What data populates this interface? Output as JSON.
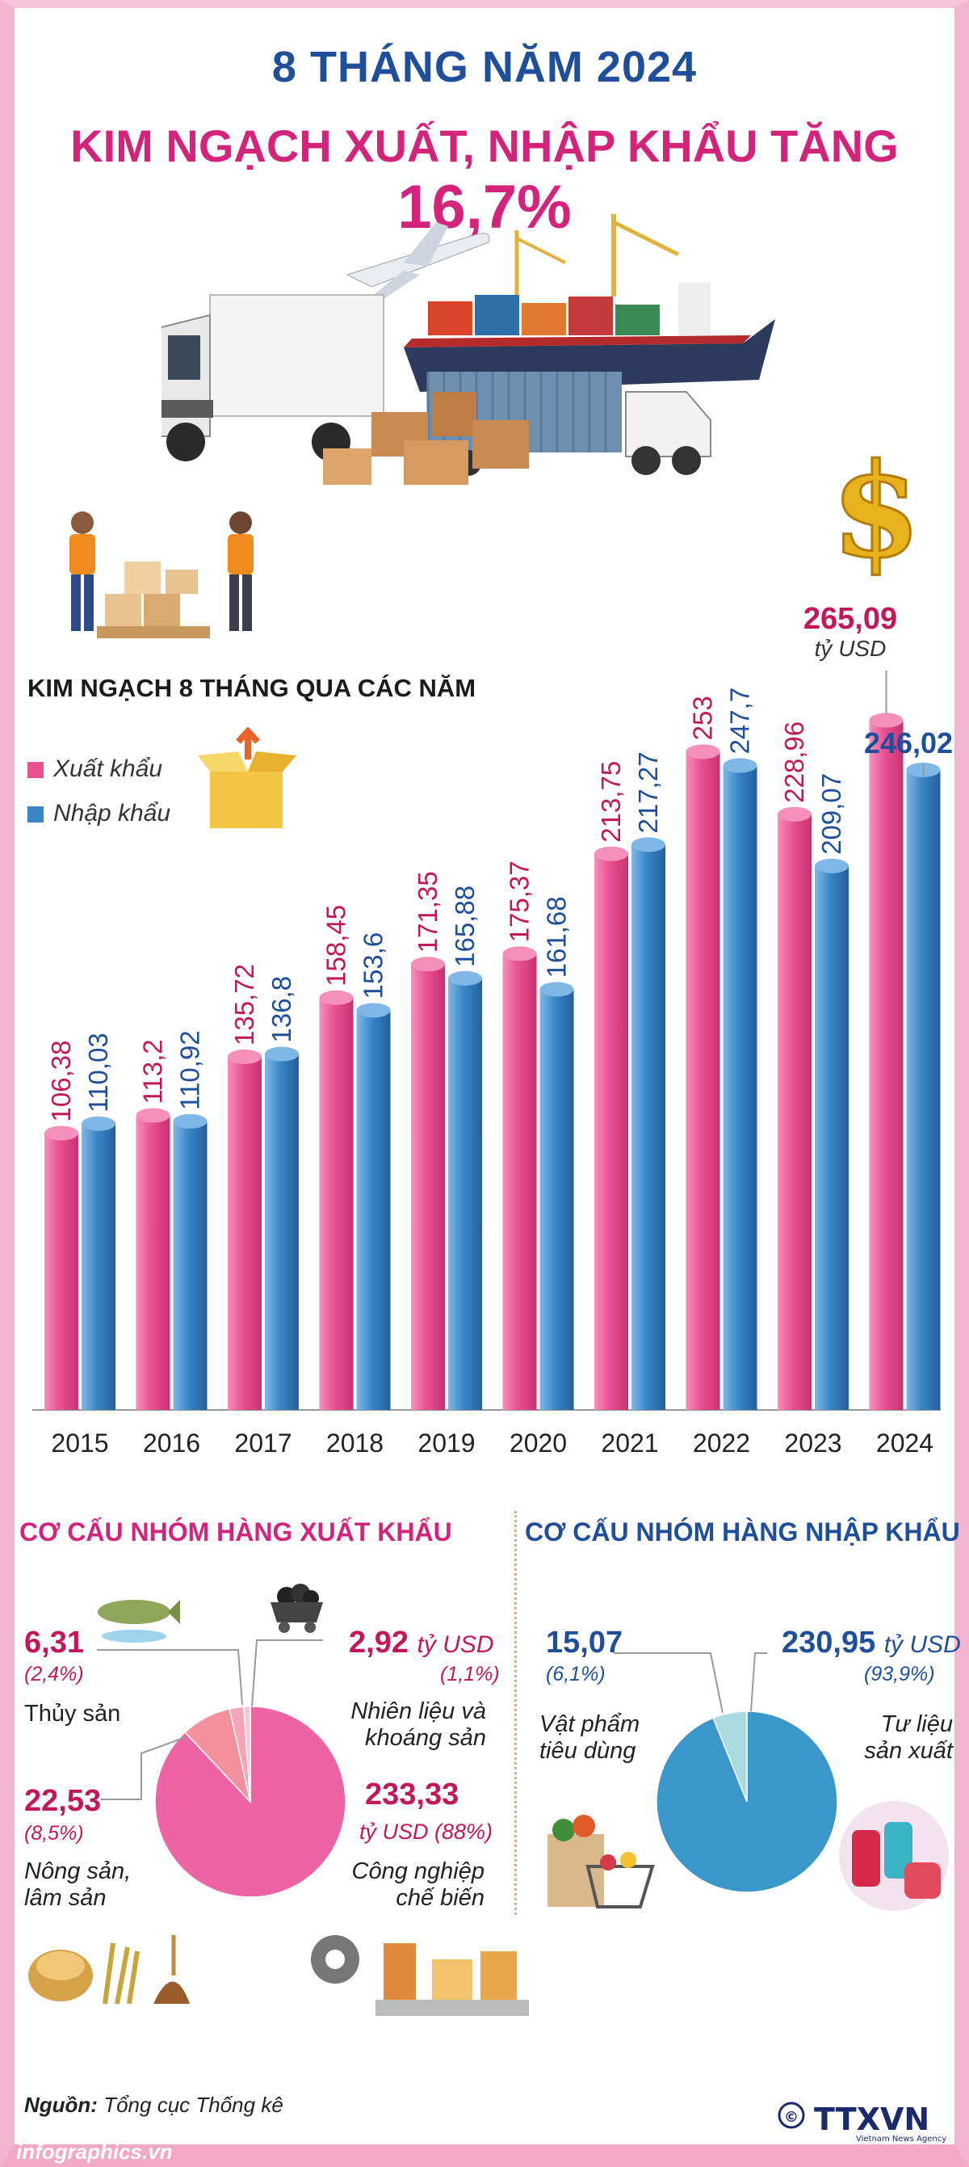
{
  "header": {
    "title_line1": "8 THÁNG NĂM 2024",
    "title_line2_text": "KIM NGẠCH XUẤT, NHẬP KHẨU TĂNG ",
    "title_line2_highlight": "16,7%"
  },
  "total_callout": {
    "value": "265,09",
    "unit": "tỷ USD"
  },
  "chart_data": {
    "type": "bar",
    "title": "KIM NGẠCH 8 THÁNG QUA CÁC NĂM",
    "categories": [
      "2015",
      "2016",
      "2017",
      "2018",
      "2019",
      "2020",
      "2021",
      "2022",
      "2023",
      "2024"
    ],
    "series": [
      {
        "name": "Xuất khẩu",
        "values": [
          106.38,
          113.2,
          135.72,
          158.45,
          171.35,
          175.37,
          213.75,
          253,
          228.96,
          265.09
        ],
        "labels": [
          "106,38",
          "113,2",
          "135,72",
          "158,45",
          "171,35",
          "175,37",
          "213,75",
          "253",
          "228,96",
          "265,09"
        ]
      },
      {
        "name": "Nhập khẩu",
        "values": [
          110.03,
          110.92,
          136.8,
          153.6,
          165.88,
          161.68,
          217.27,
          247.7,
          209.07,
          246.02
        ],
        "labels": [
          "110,03",
          "110,92",
          "136,8",
          "153,6",
          "165,88",
          "161,68",
          "217,27",
          "247,7",
          "209,07",
          "246,02"
        ]
      }
    ],
    "colors": {
      "export": "#e9508f",
      "import": "#3a86c7"
    },
    "legend_position": "top-left",
    "grid": false
  },
  "export_structure": {
    "title": "CƠ CẤU NHÓM HÀNG XUẤT KHẨU",
    "items": [
      {
        "name": "Công nghiệp chế biến",
        "value": 233.33,
        "value_label": "233,33",
        "unit": "tỷ USD",
        "pct": "(88%)",
        "share": 88.0
      },
      {
        "name": "Nông sản, lâm sản",
        "value": 22.53,
        "value_label": "22,53",
        "pct": "(8,5%)",
        "share": 8.5
      },
      {
        "name": "Thủy sản",
        "value": 6.31,
        "value_label": "6,31",
        "pct": "(2,4%)",
        "share": 2.4
      },
      {
        "name": "Nhiên liệu và khoáng sản",
        "value": 2.92,
        "value_label": "2,92",
        "unit": "tỷ USD",
        "pct": "(1,1%)",
        "share": 1.1
      }
    ],
    "colors": [
      "#ee63a4",
      "#f5909d",
      "#f6a4b8",
      "#f9c6d3"
    ]
  },
  "import_structure": {
    "title": "CƠ CẤU NHÓM HÀNG NHẬP KHẨU",
    "items": [
      {
        "name": "Tư liệu sản xuất",
        "value": 230.95,
        "value_label": "230,95",
        "unit": "tỷ USD",
        "pct": "(93,9%)",
        "share": 93.9
      },
      {
        "name": "Vật phẩm tiêu dùng",
        "value": 15.07,
        "value_label": "15,07",
        "pct": "(6,1%)",
        "share": 6.1
      }
    ],
    "colors": [
      "#3b96c9",
      "#a9dbe1"
    ]
  },
  "labels": {
    "export_fuel_line1": "Nhiên liệu và",
    "export_fuel_line2": "khoáng sản",
    "export_agri_line1": "Nông sản,",
    "export_agri_line2": "lâm sản",
    "export_ind_line1": "Công nghiệp",
    "export_ind_line2": "chế biến",
    "import_cons_line1": "Vật phẩm",
    "import_cons_line2": "tiêu dùng",
    "import_prod_line1": "Tư liệu",
    "import_prod_line2": "sản xuất"
  },
  "source": {
    "label": "Nguồn:",
    "text": "Tổng cục Thống kê"
  },
  "footer": {
    "site": "infographics.vn",
    "logo": "TTXVN",
    "logo_sub": "Vietnam News Agency",
    "copyright": "©"
  }
}
